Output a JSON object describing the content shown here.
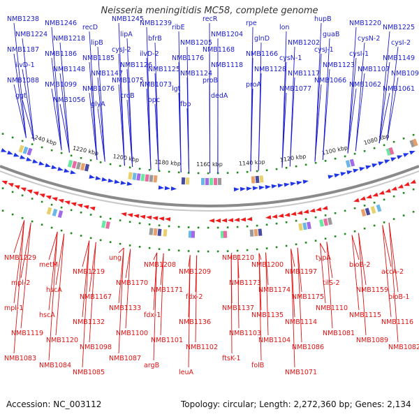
{
  "title": "Neisseria meningitidis MC58, complete genome",
  "footer": {
    "accession": "Accession: NC_003112",
    "summary": "Topology: circular; Length: 2,272,360 bp; Genes: 2,134"
  },
  "colors": {
    "forward": "#1a1acc",
    "reverse": "#dd1111",
    "forward_arrow": "#1f35e6",
    "reverse_arrow": "#ee1c1c",
    "tick": "#1e8a1e",
    "backbone": "#8a8a8a"
  },
  "scale": {
    "ticks": [
      {
        "label": "1240 kbp"
      },
      {
        "label": "1220 kbp"
      },
      {
        "label": "1200 kbp"
      },
      {
        "label": "1180 kbp"
      },
      {
        "label": "1160 kbp"
      },
      {
        "label": "1140 kbp"
      },
      {
        "label": "1120 kbp"
      },
      {
        "label": "1100 kbp"
      },
      {
        "label": "1080 kbp"
      }
    ]
  },
  "forward_labels": [
    "NMB1238",
    "NMB1246",
    "recD",
    "NMB1245",
    "NMB1239",
    "ribE",
    "recR",
    "rpe",
    "lon",
    "hupB",
    "NMB1220",
    "NMB1225",
    "NMB1224",
    "NMB1218",
    "lipB",
    "lipA",
    "bfrB",
    "NMB1205",
    "NMB1204",
    "glnD",
    "NMB1202",
    "guaB",
    "cysN-2",
    "cysI-2",
    "NMB1187",
    "NMB1186",
    "NMB1185",
    "cysJ-2",
    "ilvD-2",
    "NMB1176",
    "NMB1168",
    "NMB1166",
    "cysN-1",
    "cysJ-1",
    "cysI-1",
    "NMB1149",
    "ilvD-1",
    "NMB1148",
    "NMB1147",
    "NMB1126",
    "NMB1125",
    "NMB1124",
    "NMB1118",
    "NMB1128",
    "NMB1117",
    "NMB1123",
    "NMB1107",
    "NMB1093",
    "NMB1088",
    "NMB1099",
    "NMB1076",
    "NMB1075",
    "NMB1073",
    "lgt",
    "proB",
    "proA",
    "NMB1077",
    "NMB1066",
    "NMB1062",
    "NMB1061",
    "ggt",
    "NMB1056",
    "glyA",
    "crcB",
    "opc",
    "fbp",
    "dedA"
  ],
  "reverse_labels": [
    "NMB1229",
    "metM",
    "NMB1219",
    "ung",
    "NMB1208",
    "NMB1209",
    "NMB1210",
    "NMB1200",
    "NMB1197",
    "typA",
    "bioB-2",
    "accA-2",
    "mpl-2",
    "hscA",
    "NMB1167",
    "NMB1170",
    "NMB1171",
    "fdx-2",
    "NMB1173",
    "NMB1174",
    "NMB1175",
    "tilS-2",
    "NMB1159",
    "bioB-1",
    "mpl-1",
    "hscA",
    "NMB1132",
    "NMB1133",
    "fdx-1",
    "NMB1136",
    "NMB1137",
    "NMB1135",
    "NMB1114",
    "NMB1110",
    "NMB1115",
    "NMB1116",
    "NMB1119",
    "NMB1120",
    "NMB1098",
    "NMB1100",
    "NMB1101",
    "NMB1102",
    "NMB1103",
    "NMB1104",
    "NMB1086",
    "NMB1081",
    "NMB1089",
    "NMB1082",
    "NMB1083",
    "NMB1084",
    "NMB1085",
    "NMB1087",
    "argB",
    "leuA",
    "ftsK-1",
    "folB",
    "NMB1071"
  ]
}
